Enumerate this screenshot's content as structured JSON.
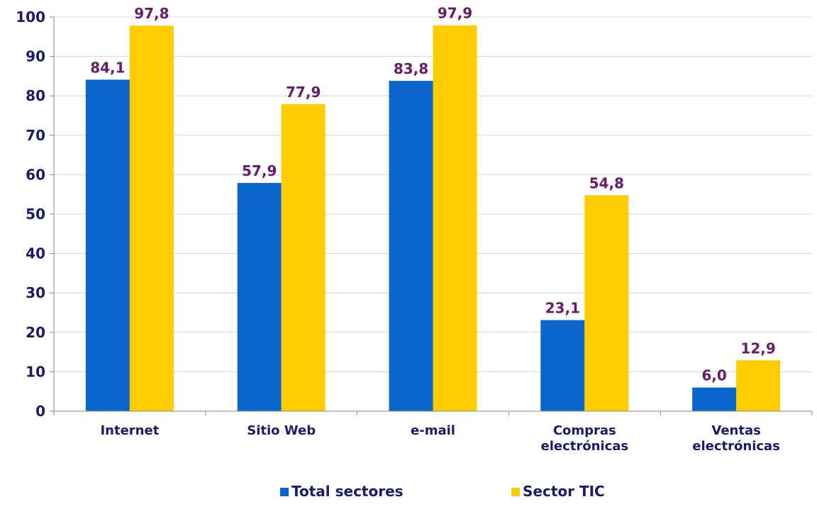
{
  "chart_data": {
    "type": "bar",
    "categories": [
      [
        "Internet"
      ],
      [
        "Sitio Web"
      ],
      [
        "e-mail"
      ],
      [
        "Compras",
        "electrónicas"
      ],
      [
        "Ventas",
        "electrónicas"
      ]
    ],
    "series": [
      {
        "name": "Total sectores",
        "color": "#0a66cc",
        "values": [
          84.1,
          57.9,
          83.8,
          23.1,
          6.0
        ],
        "labels": [
          "84,1",
          "57,9",
          "83,8",
          "23,1",
          "6,0"
        ]
      },
      {
        "name": "Sector TIC",
        "color": "#ffcc00",
        "values": [
          97.8,
          77.9,
          97.9,
          54.8,
          12.9
        ],
        "labels": [
          "97,8",
          "77,9",
          "97,9",
          "54,8",
          "12,9"
        ]
      }
    ],
    "ylim": [
      0,
      100
    ],
    "yticks": [
      0,
      10,
      20,
      30,
      40,
      50,
      60,
      70,
      80,
      90,
      100
    ],
    "grid": true,
    "legend_position": "bottom"
  }
}
